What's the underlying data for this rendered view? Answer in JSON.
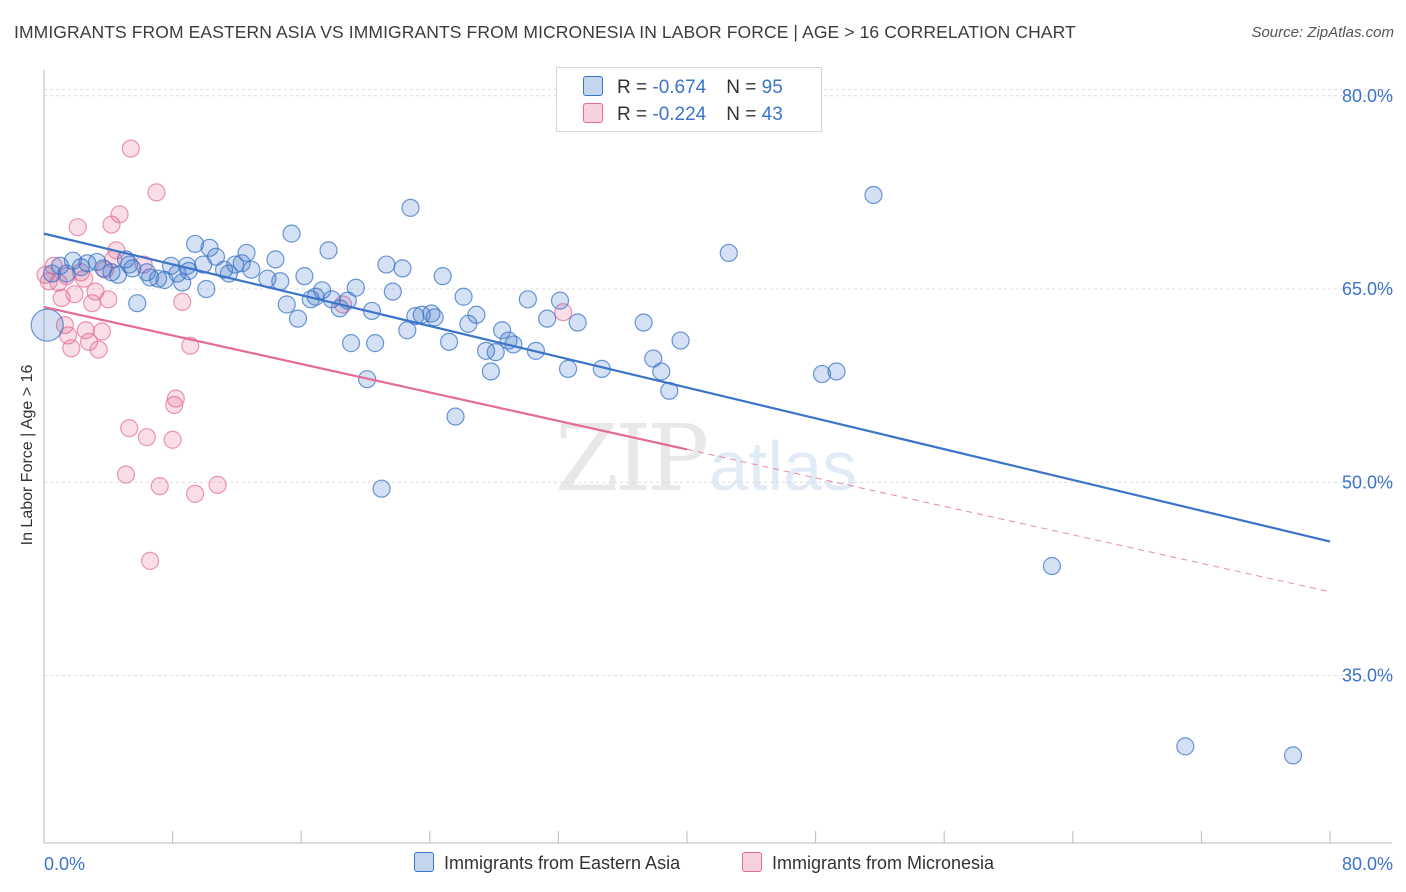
{
  "header": {
    "title": "IMMIGRANTS FROM EASTERN ASIA VS IMMIGRANTS FROM MICRONESIA IN LABOR FORCE | AGE > 16 CORRELATION CHART",
    "source": "Source: ZipAtlas.com"
  },
  "watermark": {
    "zip": "ZIP",
    "atlas": "atlas"
  },
  "legend": {
    "rows": [
      {
        "r_label": "R = ",
        "r_value": "-0.674",
        "n_label": "N = ",
        "n_value": "95"
      },
      {
        "r_label": "R = ",
        "r_value": "-0.224",
        "n_label": "N = ",
        "n_value": "43"
      }
    ]
  },
  "chart_data": {
    "type": "scatter",
    "title": "IMMIGRANTS FROM EASTERN ASIA VS IMMIGRANTS FROM MICRONESIA IN LABOR FORCE | AGE > 16 CORRELATION CHART",
    "xlabel": "",
    "ylabel": "In Labor Force | Age > 16",
    "xlim": [
      0,
      80
    ],
    "ylim": [
      22,
      82
    ],
    "x_tick_labels": [
      "0.0%",
      "80.0%"
    ],
    "y_ticks": [
      35,
      50,
      65,
      80
    ],
    "y_tick_labels": [
      "35.0%",
      "50.0%",
      "65.0%",
      "80.0%"
    ],
    "grid": true,
    "legend_position": "top-center",
    "colors": {
      "eastern_asia": "#3b74c8",
      "micronesia": "#e46b93",
      "axis_label": "#3b74c8"
    },
    "series": [
      {
        "name": "Immigrants from Eastern Asia",
        "color": "#3b74c8",
        "R": -0.674,
        "N": 95,
        "trend": {
          "x": [
            0,
            80
          ],
          "y": [
            69.3,
            45.4
          ],
          "dashed_from": null
        },
        "points": [
          [
            0.2,
            62.2
          ],
          [
            0.5,
            66.2
          ],
          [
            1.0,
            66.8
          ],
          [
            1.4,
            66.2
          ],
          [
            1.8,
            67.2
          ],
          [
            2.3,
            66.7
          ],
          [
            2.7,
            67.0
          ],
          [
            3.3,
            67.1
          ],
          [
            3.7,
            66.6
          ],
          [
            4.2,
            66.3
          ],
          [
            4.6,
            66.1
          ],
          [
            5.1,
            67.3
          ],
          [
            5.5,
            66.6
          ],
          [
            5.8,
            63.9
          ],
          [
            6.4,
            66.3
          ],
          [
            6.6,
            65.9
          ],
          [
            7.1,
            65.8
          ],
          [
            7.5,
            65.7
          ],
          [
            7.9,
            66.8
          ],
          [
            8.3,
            66.2
          ],
          [
            8.6,
            65.5
          ],
          [
            8.9,
            66.8
          ],
          [
            9.4,
            68.5
          ],
          [
            9.9,
            66.9
          ],
          [
            10.1,
            65.0
          ],
          [
            10.3,
            68.2
          ],
          [
            10.7,
            67.5
          ],
          [
            11.2,
            66.5
          ],
          [
            11.5,
            66.2
          ],
          [
            11.9,
            66.9
          ],
          [
            12.3,
            67.0
          ],
          [
            12.6,
            67.8
          ],
          [
            12.9,
            66.5
          ],
          [
            13.9,
            65.8
          ],
          [
            14.4,
            67.3
          ],
          [
            14.7,
            65.6
          ],
          [
            15.1,
            63.8
          ],
          [
            15.4,
            69.3
          ],
          [
            15.8,
            62.7
          ],
          [
            16.2,
            66.0
          ],
          [
            16.6,
            64.2
          ],
          [
            16.9,
            64.4
          ],
          [
            17.3,
            64.9
          ],
          [
            17.7,
            68.0
          ],
          [
            18.4,
            63.5
          ],
          [
            18.9,
            64.1
          ],
          [
            19.1,
            60.8
          ],
          [
            19.4,
            65.1
          ],
          [
            20.1,
            58.0
          ],
          [
            20.4,
            63.3
          ],
          [
            20.6,
            60.8
          ],
          [
            21.3,
            66.9
          ],
          [
            21.7,
            64.8
          ],
          [
            22.3,
            66.6
          ],
          [
            22.6,
            61.8
          ],
          [
            22.8,
            71.3
          ],
          [
            23.1,
            62.9
          ],
          [
            23.5,
            63.0
          ],
          [
            24.1,
            63.1
          ],
          [
            24.8,
            66.0
          ],
          [
            25.2,
            60.9
          ],
          [
            25.6,
            55.1
          ],
          [
            26.1,
            64.4
          ],
          [
            26.4,
            62.3
          ],
          [
            26.9,
            63.0
          ],
          [
            27.5,
            60.2
          ],
          [
            27.8,
            58.6
          ],
          [
            28.1,
            60.1
          ],
          [
            28.5,
            61.8
          ],
          [
            28.9,
            61.0
          ],
          [
            29.2,
            60.7
          ],
          [
            30.1,
            64.2
          ],
          [
            30.6,
            60.2
          ],
          [
            31.3,
            62.7
          ],
          [
            32.1,
            64.1
          ],
          [
            32.6,
            58.8
          ],
          [
            33.2,
            62.4
          ],
          [
            34.7,
            58.8
          ],
          [
            37.3,
            62.4
          ],
          [
            37.9,
            59.6
          ],
          [
            38.4,
            58.6
          ],
          [
            38.9,
            57.1
          ],
          [
            39.6,
            61.0
          ],
          [
            42.6,
            67.8
          ],
          [
            48.4,
            58.4
          ],
          [
            49.3,
            58.6
          ],
          [
            51.6,
            72.3
          ],
          [
            21.0,
            49.5
          ],
          [
            62.7,
            43.5
          ],
          [
            71.0,
            29.5
          ],
          [
            77.7,
            28.8
          ],
          [
            5.3,
            66.9
          ],
          [
            9.0,
            66.4
          ],
          [
            17.9,
            64.2
          ],
          [
            24.3,
            62.8
          ]
        ]
      },
      {
        "name": "Immigrants from Micronesia",
        "color": "#e46b93",
        "R": -0.224,
        "N": 43,
        "trend": {
          "x": [
            0,
            80
          ],
          "y": [
            63.6,
            41.5
          ],
          "dashed_from": 40
        },
        "points": [
          [
            0.1,
            66.1
          ],
          [
            0.3,
            65.6
          ],
          [
            0.6,
            66.8
          ],
          [
            0.9,
            65.5
          ],
          [
            1.1,
            64.3
          ],
          [
            1.3,
            62.2
          ],
          [
            1.5,
            61.4
          ],
          [
            1.7,
            60.4
          ],
          [
            1.9,
            64.6
          ],
          [
            2.1,
            69.8
          ],
          [
            2.3,
            66.3
          ],
          [
            2.5,
            65.8
          ],
          [
            2.6,
            61.8
          ],
          [
            2.8,
            60.9
          ],
          [
            3.0,
            63.9
          ],
          [
            3.2,
            64.8
          ],
          [
            3.4,
            60.3
          ],
          [
            3.6,
            61.7
          ],
          [
            3.8,
            66.5
          ],
          [
            4.0,
            64.2
          ],
          [
            4.2,
            70.0
          ],
          [
            4.3,
            67.3
          ],
          [
            4.5,
            68.0
          ],
          [
            4.7,
            70.8
          ],
          [
            5.1,
            50.6
          ],
          [
            5.3,
            54.2
          ],
          [
            5.4,
            75.9
          ],
          [
            6.2,
            66.9
          ],
          [
            6.4,
            53.5
          ],
          [
            6.6,
            43.9
          ],
          [
            7.0,
            72.5
          ],
          [
            7.2,
            49.7
          ],
          [
            8.0,
            53.3
          ],
          [
            8.1,
            56.0
          ],
          [
            8.2,
            56.5
          ],
          [
            8.6,
            64.0
          ],
          [
            9.1,
            60.6
          ],
          [
            9.4,
            49.1
          ],
          [
            10.8,
            49.8
          ],
          [
            18.6,
            63.8
          ],
          [
            32.3,
            63.2
          ],
          [
            34.6,
            78.8
          ],
          [
            1.4,
            66.0
          ]
        ]
      }
    ]
  },
  "bottom_legend": {
    "items": [
      {
        "label": "Immigrants from Eastern Asia",
        "color": "#3b74c8"
      },
      {
        "label": "Immigrants from Micronesia",
        "color": "#e46b93"
      }
    ]
  }
}
